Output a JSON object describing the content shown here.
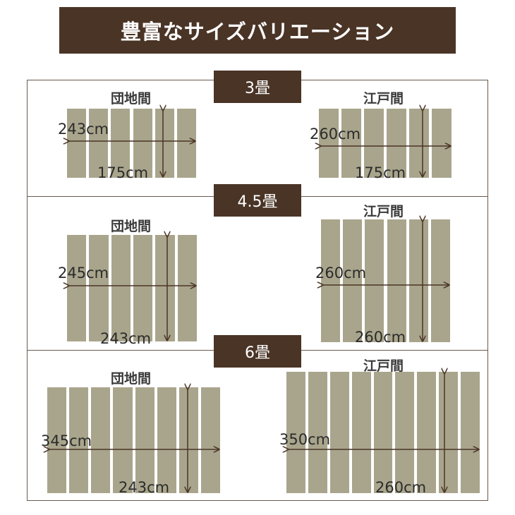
{
  "header": {
    "title": "豊富なサイズバリエーション"
  },
  "sections": [
    {
      "label": "3畳",
      "left": {
        "title": "団地間",
        "width_dim": "243cm",
        "height_dim": "175cm",
        "planks": 6
      },
      "right": {
        "title": "江戸間",
        "width_dim": "260cm",
        "height_dim": "175cm",
        "planks": 6
      }
    },
    {
      "label": "4.5畳",
      "left": {
        "title": "団地間",
        "width_dim": "245cm",
        "height_dim": "243cm",
        "planks": 6
      },
      "right": {
        "title": "江戸間",
        "width_dim": "260cm",
        "height_dim": "260cm",
        "planks": 6
      }
    },
    {
      "label": "6畳",
      "left": {
        "title": "団地間",
        "width_dim": "345cm",
        "height_dim": "243cm",
        "planks": 8
      },
      "right": {
        "title": "江戸間",
        "width_dim": "350cm",
        "height_dim": "260cm",
        "planks": 9
      }
    }
  ],
  "colors": {
    "header_bg": "#4a3426",
    "plank": "#a9a58c",
    "frame": "#6a5a4e"
  }
}
